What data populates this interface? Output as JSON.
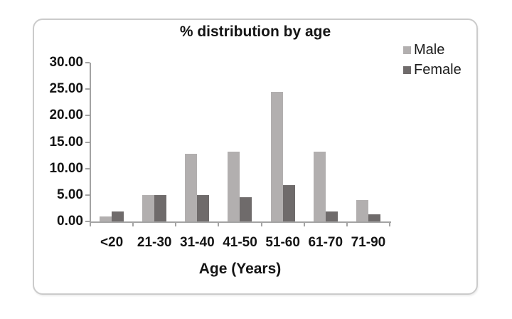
{
  "chart_data": {
    "type": "bar",
    "title": "% distribution by age",
    "xlabel": "Age (Years)",
    "ylabel": "",
    "categories": [
      "<20",
      "21-30",
      "31-40",
      "41-50",
      "51-60",
      "61-70",
      "71-90"
    ],
    "series": [
      {
        "name": "Male",
        "color": "#b2afaf",
        "values": [
          0.91,
          5.0,
          12.73,
          13.18,
          24.55,
          13.18,
          4.09
        ]
      },
      {
        "name": "Female",
        "color": "#6f6b6b",
        "values": [
          1.82,
          5.0,
          5.0,
          4.55,
          6.82,
          1.82,
          1.36
        ]
      }
    ],
    "ylim": [
      0,
      30
    ],
    "ytick_values": [
      30,
      25,
      20,
      15,
      10,
      5,
      0
    ],
    "ytick_labels": [
      "30.00",
      "25.00",
      "20.00",
      "15.00",
      "10.00",
      "5.00",
      "0.00"
    ],
    "legend_position": "top-right",
    "grid": false,
    "colors": {
      "axis": "#a3a3a3",
      "text": "#141414",
      "panel_border": "#cbcbcb",
      "background": "#ffffff"
    }
  }
}
